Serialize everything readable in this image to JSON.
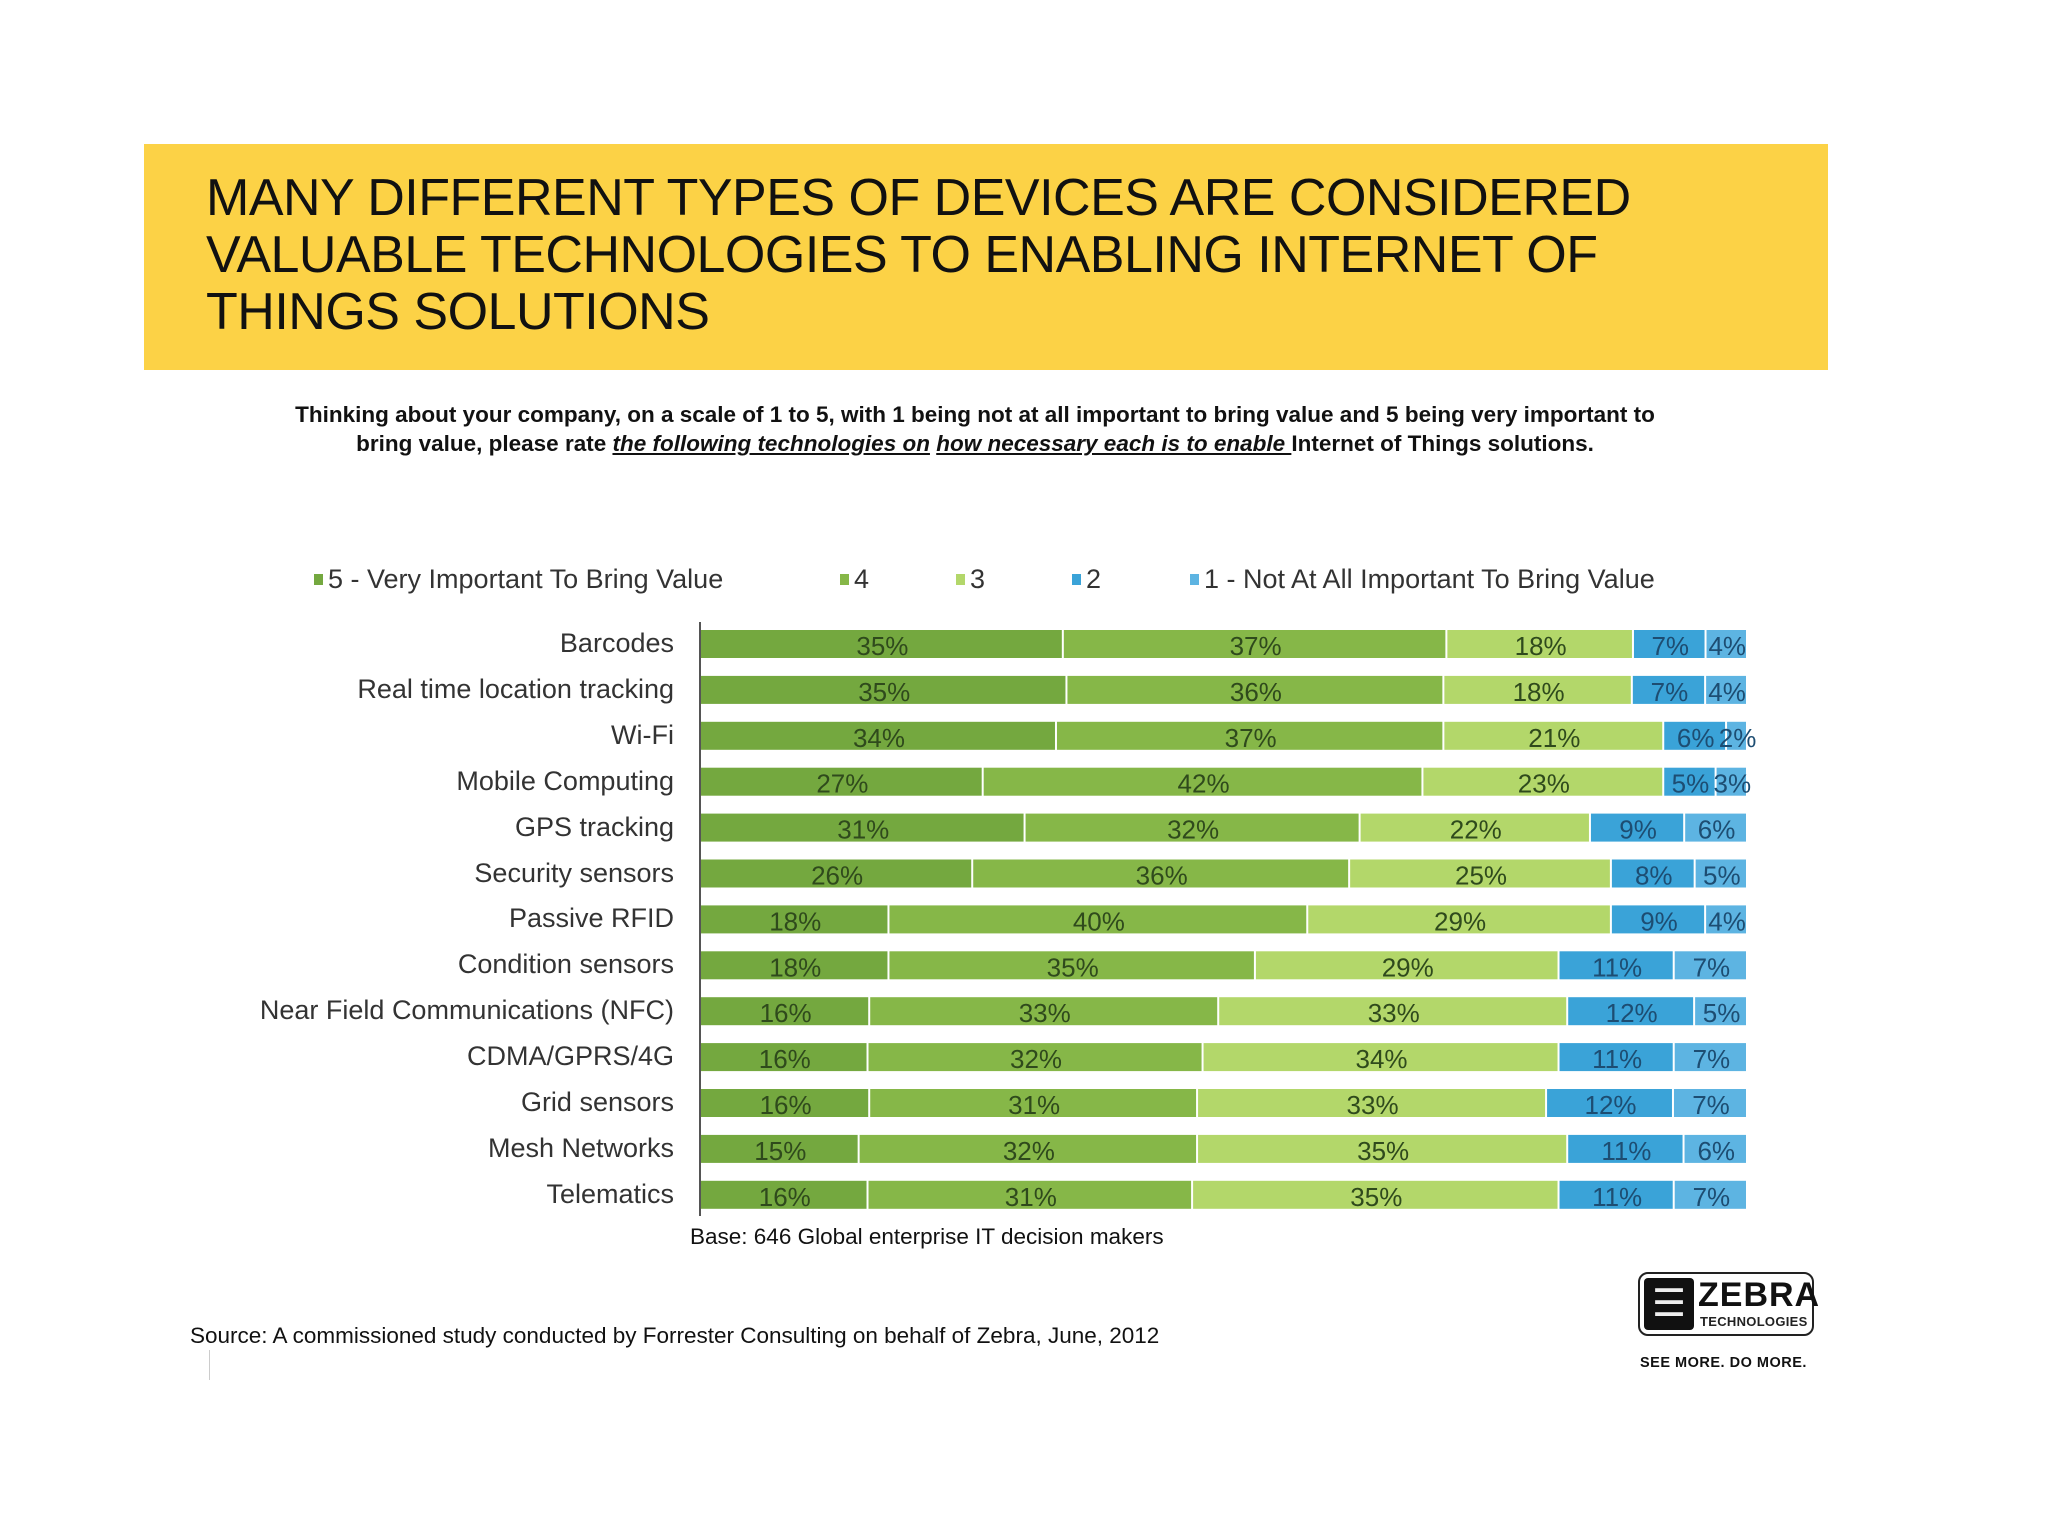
{
  "banner": {
    "title_lines": [
      "MANY DIFFERENT TYPES OF DEVICES ARE CONSIDERED",
      "VALUABLE TECHNOLOGIES TO ENABLING INTERNET OF",
      "THINGS SOLUTIONS"
    ],
    "color": "#fcd246"
  },
  "question": {
    "part1": "Thinking about your company, on a scale of 1 to 5, with 1 being not at all important to bring value and 5 being very important to bring value, please rate ",
    "underline1": "the following technologies on",
    "between": " ",
    "underline2": "how necessary each is to enable ",
    "part2": "Internet of Things solutions."
  },
  "footer": {
    "base": "Base: 646 Global enterprise IT decision makers",
    "source": "Source: A commissioned study conducted by Forrester Consulting on behalf of Zebra, June, 2012"
  },
  "logo": {
    "icon": "zebra-head-icon",
    "name": "ZEBRA",
    "sub": "TECHNOLOGIES",
    "tagline": "SEE MORE. DO MORE."
  },
  "chart_data": {
    "type": "bar",
    "orientation": "horizontal",
    "stacked": true,
    "title": "",
    "xlabel": "",
    "ylabel": "",
    "legend_position": "top",
    "grid": false,
    "value_suffix": "%",
    "categories": [
      "Barcodes",
      "Real time location tracking",
      "Wi-Fi",
      "Mobile Computing",
      "GPS tracking",
      "Security sensors",
      "Passive RFID",
      "Condition sensors",
      "Near Field Communications (NFC)",
      "CDMA/GPRS/4G",
      "Grid sensors",
      "Mesh Networks",
      "Telematics"
    ],
    "series": [
      {
        "name": "5 - Very Important To Bring Value",
        "color": "#74a83f",
        "values": [
          35,
          35,
          34,
          27,
          31,
          26,
          18,
          18,
          16,
          16,
          16,
          15,
          16
        ]
      },
      {
        "name": "4",
        "color": "#86b748",
        "values": [
          37,
          36,
          37,
          42,
          32,
          36,
          40,
          35,
          33,
          32,
          31,
          32,
          31
        ]
      },
      {
        "name": "3",
        "color": "#b3d76a",
        "values": [
          18,
          18,
          21,
          23,
          22,
          25,
          29,
          29,
          33,
          34,
          33,
          35,
          35
        ]
      },
      {
        "name": "2",
        "color": "#3aa3d8",
        "values": [
          7,
          7,
          6,
          5,
          9,
          8,
          9,
          11,
          12,
          11,
          12,
          11,
          11
        ]
      },
      {
        "name": "1 - Not At All Important To Bring Value",
        "color": "#5db4e2",
        "values": [
          4,
          4,
          2,
          3,
          6,
          5,
          4,
          7,
          5,
          7,
          7,
          6,
          7
        ]
      }
    ]
  }
}
